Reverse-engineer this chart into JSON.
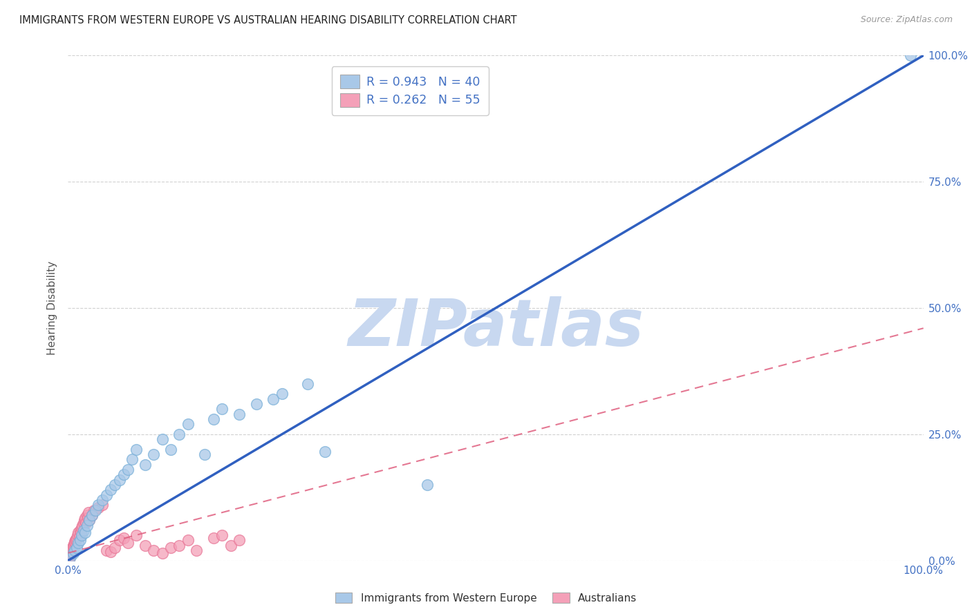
{
  "title": "IMMIGRANTS FROM WESTERN EUROPE VS AUSTRALIAN HEARING DISABILITY CORRELATION CHART",
  "source": "Source: ZipAtlas.com",
  "ylabel": "Hearing Disability",
  "xlim": [
    0.0,
    100.0
  ],
  "ylim": [
    0.0,
    100.0
  ],
  "ytick_labels": [
    "0.0%",
    "25.0%",
    "50.0%",
    "75.0%",
    "100.0%"
  ],
  "ytick_positions": [
    0.0,
    25.0,
    50.0,
    75.0,
    100.0
  ],
  "legend_labels": [
    "Immigrants from Western Europe",
    "Australians"
  ],
  "blue_color": "#a8c8e8",
  "pink_color": "#f4a0b8",
  "blue_edge_color": "#7ab0d8",
  "pink_edge_color": "#e87898",
  "blue_line_color": "#3060c0",
  "pink_line_color": "#e06080",
  "title_color": "#222222",
  "axis_tick_color": "#4472c4",
  "grid_color": "#cccccc",
  "watermark_color": "#c8d8f0",
  "watermark_text": "ZIPatlas",
  "blue_scatter_x": [
    0.3,
    0.6,
    0.8,
    1.0,
    1.2,
    1.4,
    1.6,
    1.8,
    2.0,
    2.2,
    2.5,
    2.8,
    3.2,
    3.5,
    4.0,
    4.5,
    5.0,
    5.5,
    6.0,
    6.5,
    7.0,
    7.5,
    8.0,
    9.0,
    10.0,
    11.0,
    12.0,
    13.0,
    14.0,
    16.0,
    17.0,
    18.0,
    20.0,
    22.0,
    24.0,
    25.0,
    28.0,
    30.0,
    42.0,
    98.5
  ],
  "blue_scatter_y": [
    0.8,
    1.5,
    2.0,
    2.5,
    3.5,
    4.0,
    5.0,
    6.0,
    5.5,
    7.0,
    8.0,
    9.0,
    10.0,
    11.0,
    12.0,
    13.0,
    14.0,
    15.0,
    16.0,
    17.0,
    18.0,
    20.0,
    22.0,
    19.0,
    21.0,
    24.0,
    22.0,
    25.0,
    27.0,
    21.0,
    28.0,
    30.0,
    29.0,
    31.0,
    32.0,
    33.0,
    35.0,
    21.5,
    15.0,
    100.0
  ],
  "pink_scatter_x": [
    0.1,
    0.15,
    0.2,
    0.25,
    0.3,
    0.35,
    0.4,
    0.45,
    0.5,
    0.55,
    0.6,
    0.65,
    0.7,
    0.75,
    0.8,
    0.85,
    0.9,
    1.0,
    1.1,
    1.2,
    1.3,
    1.4,
    1.5,
    1.6,
    1.7,
    1.8,
    1.9,
    2.0,
    2.1,
    2.2,
    2.3,
    2.4,
    2.5,
    2.8,
    3.0,
    3.5,
    4.0,
    4.5,
    5.0,
    5.5,
    6.0,
    6.5,
    7.0,
    8.0,
    9.0,
    10.0,
    11.0,
    12.0,
    13.0,
    14.0,
    15.0,
    17.0,
    18.0,
    19.0,
    20.0
  ],
  "pink_scatter_y": [
    0.3,
    0.5,
    0.8,
    1.0,
    1.2,
    1.5,
    1.8,
    2.0,
    2.2,
    2.5,
    2.8,
    3.0,
    3.2,
    3.5,
    3.8,
    4.0,
    4.2,
    4.5,
    5.0,
    5.5,
    4.8,
    6.0,
    5.5,
    6.5,
    7.0,
    7.5,
    8.0,
    8.5,
    7.5,
    9.0,
    8.5,
    9.5,
    8.0,
    9.0,
    10.0,
    10.5,
    11.0,
    2.0,
    1.8,
    2.5,
    4.0,
    4.5,
    3.5,
    5.0,
    3.0,
    2.0,
    1.5,
    2.5,
    3.0,
    4.0,
    2.0,
    4.5,
    5.0,
    3.0,
    4.0
  ],
  "blue_line_x": [
    0,
    100
  ],
  "blue_line_y": [
    0,
    100
  ],
  "pink_line_x": [
    0,
    100
  ],
  "pink_line_y": [
    1.5,
    46.0
  ]
}
